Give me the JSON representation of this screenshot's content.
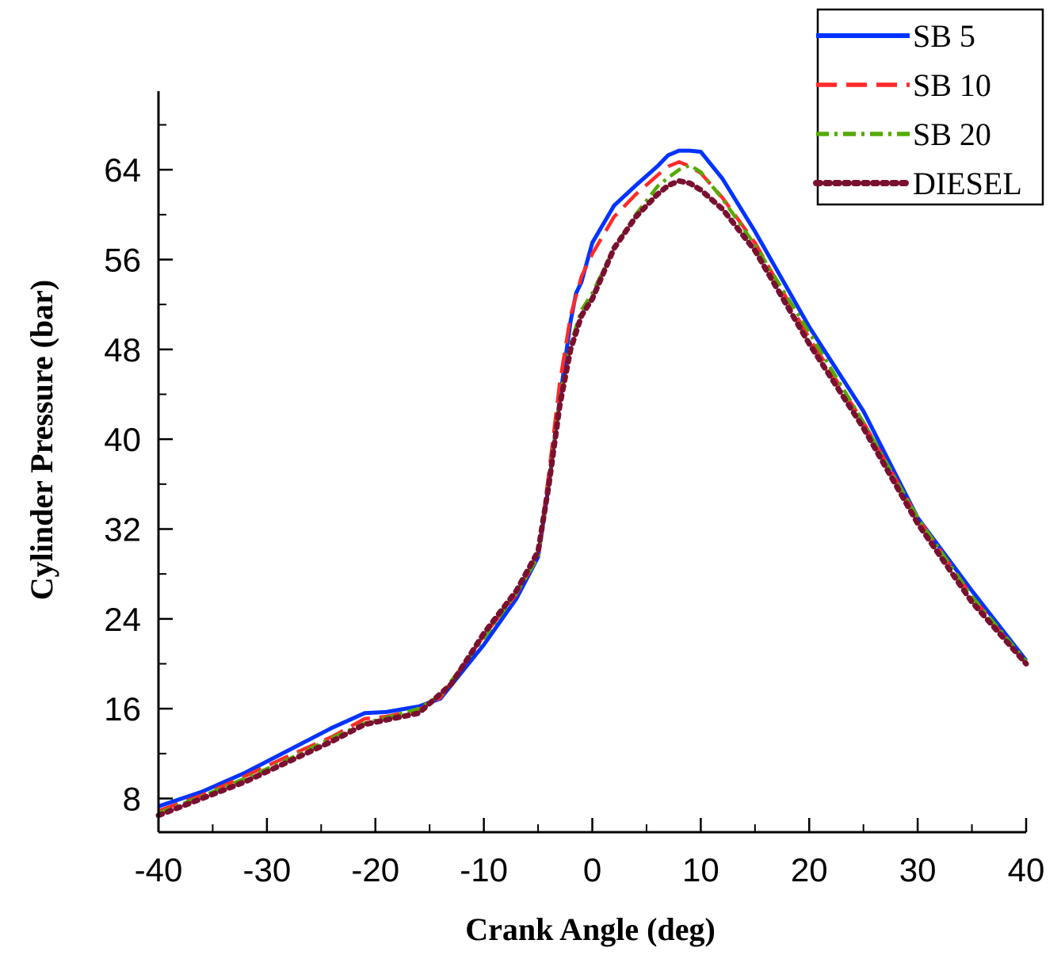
{
  "chart_data": {
    "type": "line",
    "title": "",
    "xlabel": "Crank Angle (deg)",
    "ylabel": "Cylinder Pressure (bar)",
    "xlim": [
      -40,
      40
    ],
    "ylim": [
      5,
      71
    ],
    "x_ticks": [
      -40,
      -30,
      -20,
      -10,
      0,
      10,
      20,
      30,
      40
    ],
    "x_minor_step": 5,
    "y_ticks": [
      8,
      16,
      24,
      32,
      40,
      48,
      56,
      64
    ],
    "y_minor_step": 4,
    "grid": false,
    "legend_position": "top-right",
    "series": [
      {
        "name": "SB 5",
        "color": "#0033ff",
        "dash": "solid",
        "x": [
          -40,
          -36,
          -32,
          -28,
          -24,
          -21,
          -19,
          -16,
          -14,
          -10,
          -7,
          -5,
          -4,
          -3,
          -2,
          -1.5,
          -1,
          0,
          2,
          4,
          6,
          7,
          8,
          9,
          10,
          12,
          15,
          20,
          25,
          30,
          35,
          40
        ],
        "y": [
          7.3,
          8.6,
          10.3,
          12.3,
          14.3,
          15.6,
          15.7,
          16.2,
          16.9,
          21.7,
          25.8,
          29.5,
          36.0,
          43.5,
          50.5,
          53.0,
          54.0,
          57.5,
          60.8,
          62.6,
          64.3,
          65.3,
          65.7,
          65.7,
          65.6,
          63.2,
          58.5,
          50.0,
          42.5,
          33.0,
          26.5,
          20.3
        ]
      },
      {
        "name": "SB 10",
        "color": "#ff2a2a",
        "dash": "long-dash",
        "x": [
          -40,
          -36,
          -32,
          -28,
          -24,
          -21,
          -19,
          -16,
          -14,
          -10,
          -7,
          -5,
          -4,
          -3,
          -2,
          -1,
          0,
          2,
          4,
          6,
          7,
          8,
          9,
          10,
          12,
          15,
          20,
          25,
          30,
          35,
          40
        ],
        "y": [
          6.9,
          8.3,
          10.0,
          11.8,
          13.5,
          15.1,
          15.3,
          15.9,
          17.0,
          22.5,
          26.2,
          29.6,
          37.0,
          45.0,
          51.0,
          54.5,
          56.5,
          59.8,
          61.8,
          63.5,
          64.3,
          64.7,
          64.3,
          63.7,
          61.5,
          57.5,
          49.0,
          41.5,
          33.0,
          26.0,
          20.0
        ]
      },
      {
        "name": "SB 20",
        "color": "#55aa00",
        "dash": "dash-dot",
        "x": [
          -40,
          -36,
          -32,
          -28,
          -24,
          -21,
          -19,
          -16,
          -14,
          -10,
          -7,
          -5,
          -4,
          -3,
          -2,
          -1,
          0,
          2,
          4,
          6,
          7,
          8,
          9,
          10,
          12,
          15,
          20,
          25,
          30,
          35,
          40
        ],
        "y": [
          6.7,
          8.2,
          9.8,
          11.5,
          13.4,
          14.7,
          15.2,
          16.0,
          17.2,
          22.3,
          26.3,
          29.5,
          36.0,
          43.5,
          48.5,
          51.5,
          53.0,
          57.0,
          60.0,
          62.5,
          63.3,
          64.0,
          64.4,
          63.8,
          61.4,
          57.3,
          49.5,
          41.5,
          33.0,
          26.0,
          20.2
        ]
      },
      {
        "name": "DIESEL",
        "color": "#7a1030",
        "dash": "dotted",
        "x": [
          -40,
          -36,
          -32,
          -28,
          -24,
          -21,
          -19,
          -16,
          -13,
          -10,
          -7,
          -5,
          -4,
          -3,
          -2,
          -1,
          0,
          2,
          4,
          6,
          7,
          8,
          9,
          10,
          12,
          15,
          20,
          25,
          30,
          35,
          40
        ],
        "y": [
          6.5,
          8.0,
          9.5,
          11.3,
          13.1,
          14.6,
          15.0,
          15.6,
          18.2,
          22.7,
          26.5,
          30.0,
          36.0,
          43.0,
          48.0,
          51.0,
          52.5,
          57.0,
          59.8,
          61.8,
          62.6,
          63.0,
          62.8,
          62.2,
          60.5,
          56.8,
          48.5,
          41.0,
          32.5,
          25.5,
          20.0
        ]
      }
    ]
  }
}
